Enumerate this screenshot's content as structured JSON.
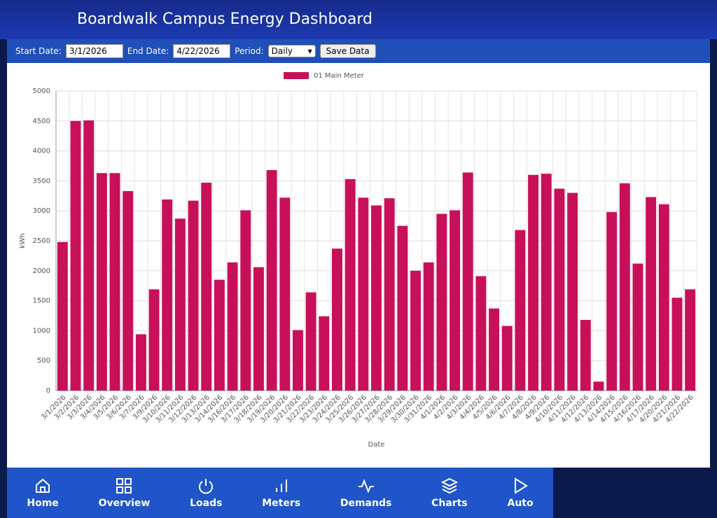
{
  "header": {
    "title": "Boardwalk Campus Energy Dashboard"
  },
  "controls": {
    "start_label": "Start Date:",
    "start_value": "3/1/2026",
    "end_label": "End Date:",
    "end_value": "4/22/2026",
    "period_label": "Period:",
    "period_value": "Daily",
    "save_button": "Save Data"
  },
  "chart_data": {
    "type": "bar",
    "categories": [
      "3/1/2026",
      "3/2/2026",
      "3/3/2026",
      "3/4/2026",
      "3/5/2026",
      "3/6/2026",
      "3/7/2026",
      "3/9/2026",
      "3/10/2026",
      "3/11/2026",
      "3/12/2026",
      "3/13/2026",
      "3/14/2026",
      "3/16/2026",
      "3/17/2026",
      "3/18/2026",
      "3/19/2026",
      "3/20/2026",
      "3/21/2026",
      "3/22/2026",
      "3/23/2026",
      "3/24/2026",
      "3/25/2026",
      "3/26/2026",
      "3/27/2026",
      "3/28/2026",
      "3/29/2026",
      "3/30/2026",
      "3/31/2026",
      "4/1/2026",
      "4/2/2026",
      "4/3/2026",
      "4/4/2026",
      "4/5/2026",
      "4/6/2026",
      "4/7/2026",
      "4/8/2026",
      "4/9/2026",
      "4/10/2026",
      "4/11/2026",
      "4/12/2026",
      "4/13/2026",
      "4/14/2026",
      "4/15/2026",
      "4/16/2026",
      "4/17/2026",
      "4/20/2026",
      "4/21/2026",
      "4/22/2026"
    ],
    "series": [
      {
        "name": "01 Main Meter",
        "color": "#c8105a",
        "values": [
          2480,
          4500,
          4510,
          3630,
          3630,
          3330,
          940,
          1690,
          3190,
          2870,
          3170,
          3470,
          1850,
          2140,
          3010,
          2060,
          3680,
          3220,
          1010,
          1640,
          1240,
          2370,
          3530,
          3220,
          3090,
          3210,
          2750,
          2000,
          2140,
          2950,
          3010,
          3640,
          1910,
          1370,
          1080,
          2680,
          3600,
          3620,
          3370,
          3300,
          1180,
          150,
          2980,
          3460,
          2120,
          3230,
          3110,
          1550,
          1690
        ]
      }
    ],
    "ylim": [
      0,
      5000
    ],
    "yticks": [
      0,
      500,
      1000,
      1500,
      2000,
      2500,
      3000,
      3500,
      4000,
      4500,
      5000
    ],
    "y_label": "kWh",
    "x_label": "Date",
    "grid": true,
    "legend": "top"
  },
  "nav": {
    "items": [
      "Home",
      "Overview",
      "Loads",
      "Meters",
      "Demands",
      "Charts",
      "Auto"
    ]
  }
}
